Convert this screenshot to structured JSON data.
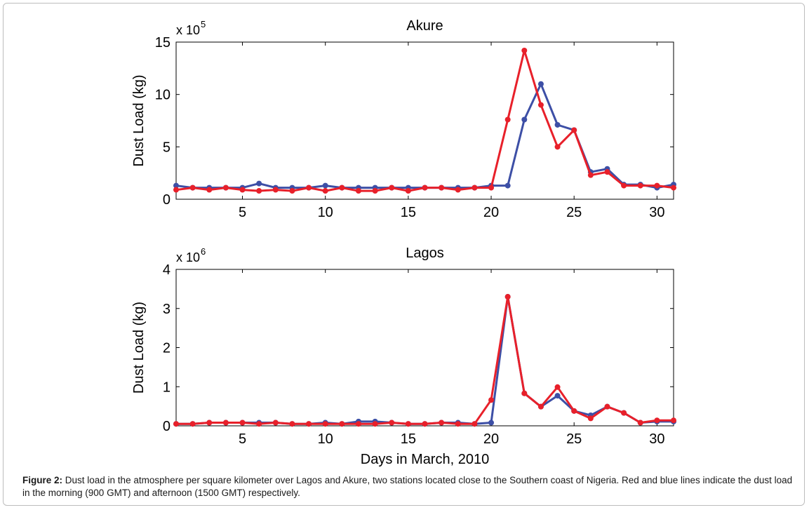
{
  "colors": {
    "blue": "#3D4FA6",
    "red": "#E8202A",
    "axis": "#000000"
  },
  "shared_xlabel": "Days in March, 2010",
  "caption": {
    "label": "Figure 2:",
    "text": " Dust load in the atmosphere per square kilometer over Lagos and Akure, two stations located close to the Southern coast of Nigeria. Red and blue lines indicate the dust load in the morning (900 GMT) and afternoon (1500 GMT) respectively."
  },
  "chart_data": [
    {
      "type": "line",
      "title": "Akure",
      "ylabel": "Dust Load (kg)",
      "xlabel": "",
      "exponent_base": "x 10",
      "exponent_power": "5",
      "xlim": [
        1,
        31
      ],
      "ylim": [
        0,
        15
      ],
      "xticks": [
        5,
        10,
        15,
        20,
        25,
        30
      ],
      "yticks": [
        0,
        5,
        10,
        15
      ],
      "x": [
        1,
        2,
        3,
        4,
        5,
        6,
        7,
        8,
        9,
        10,
        11,
        12,
        13,
        14,
        15,
        16,
        17,
        18,
        19,
        20,
        21,
        22,
        23,
        24,
        25,
        26,
        27,
        28,
        29,
        30,
        31
      ],
      "series": [
        {
          "color": "#3D4FA6",
          "values": [
            1.3,
            1.1,
            1.1,
            1.1,
            1.1,
            1.5,
            1.1,
            1.1,
            1.1,
            1.3,
            1.1,
            1.1,
            1.1,
            1.1,
            1.1,
            1.1,
            1.1,
            1.1,
            1.1,
            1.3,
            1.3,
            7.6,
            11.0,
            7.1,
            6.6,
            2.6,
            2.9,
            1.4,
            1.4,
            1.1,
            1.4
          ]
        },
        {
          "color": "#E8202A",
          "values": [
            0.9,
            1.1,
            0.9,
            1.1,
            0.9,
            0.8,
            0.9,
            0.8,
            1.1,
            0.8,
            1.1,
            0.8,
            0.8,
            1.1,
            0.8,
            1.1,
            1.1,
            0.9,
            1.1,
            1.1,
            7.6,
            14.2,
            9.0,
            5.0,
            6.6,
            2.3,
            2.6,
            1.3,
            1.3,
            1.3,
            1.1
          ]
        }
      ]
    },
    {
      "type": "line",
      "title": "Lagos",
      "ylabel": "Dust Load (kg)",
      "xlabel": "Days in March, 2010",
      "exponent_base": "x 10",
      "exponent_power": "6",
      "xlim": [
        1,
        31
      ],
      "ylim": [
        0,
        4
      ],
      "xticks": [
        5,
        10,
        15,
        20,
        25,
        30
      ],
      "yticks": [
        0,
        1,
        2,
        3,
        4
      ],
      "x": [
        1,
        2,
        3,
        4,
        5,
        6,
        7,
        8,
        9,
        10,
        11,
        12,
        13,
        14,
        15,
        16,
        17,
        18,
        19,
        20,
        21,
        22,
        23,
        24,
        25,
        26,
        27,
        28,
        29,
        30,
        31
      ],
      "series": [
        {
          "color": "#3D4FA6",
          "values": [
            0.05,
            0.05,
            0.08,
            0.08,
            0.08,
            0.08,
            0.08,
            0.05,
            0.05,
            0.08,
            0.05,
            0.11,
            0.11,
            0.08,
            0.05,
            0.05,
            0.08,
            0.08,
            0.05,
            0.08,
            3.3,
            0.83,
            0.49,
            0.77,
            0.38,
            0.27,
            0.49,
            0.33,
            0.08,
            0.11,
            0.11
          ]
        },
        {
          "color": "#E8202A",
          "values": [
            0.05,
            0.05,
            0.08,
            0.08,
            0.08,
            0.05,
            0.08,
            0.05,
            0.05,
            0.05,
            0.05,
            0.05,
            0.05,
            0.08,
            0.05,
            0.05,
            0.08,
            0.05,
            0.05,
            0.66,
            3.3,
            0.83,
            0.49,
            0.99,
            0.38,
            0.19,
            0.49,
            0.33,
            0.08,
            0.14,
            0.14
          ]
        }
      ]
    }
  ]
}
